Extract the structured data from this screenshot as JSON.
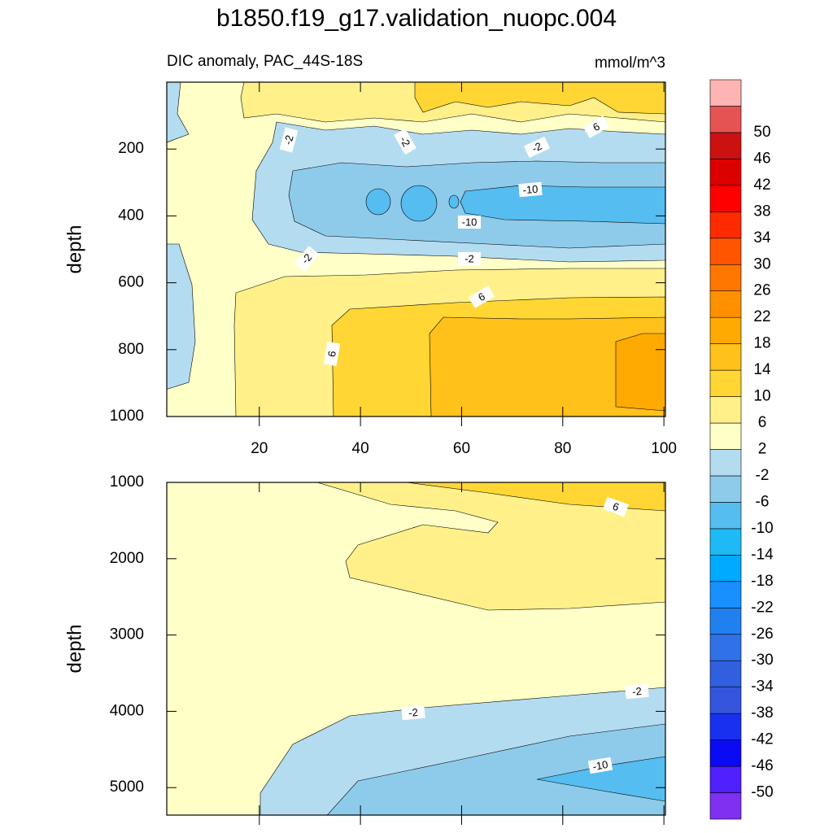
{
  "chart_data": {
    "type": "contour",
    "title": "b1850.f19_g17.validation_nuopc.004",
    "left_string": "DIC anomaly, PAC_44S-18S",
    "right_string": "mmol/m^3",
    "panels": [
      {
        "ylabel": "depth",
        "ylim": [
          0,
          1000
        ],
        "yticks": [
          200,
          400,
          600,
          800,
          1000
        ],
        "xlim": [
          1.7,
          100.3
        ],
        "xticks": [
          20,
          40,
          60,
          80,
          100
        ],
        "reverse_y": true,
        "contour_labels": [
          -2,
          -2,
          6,
          -2,
          -10,
          -10,
          -2,
          -2,
          6,
          6
        ]
      },
      {
        "ylabel": "depth",
        "ylim": [
          1000,
          5360
        ],
        "yticks": [
          1000,
          2000,
          3000,
          4000,
          5000
        ],
        "xlim": [
          1.7,
          100.3
        ],
        "reverse_y": true,
        "contour_labels": [
          6,
          -2,
          -2,
          -10
        ]
      }
    ],
    "colorbar": {
      "levels": [
        -50,
        -46,
        -42,
        -38,
        -34,
        -30,
        -26,
        -22,
        -18,
        -14,
        -10,
        -6,
        -2,
        2,
        6,
        10,
        14,
        18,
        22,
        26,
        30,
        34,
        38,
        42,
        46,
        50
      ],
      "colors": [
        "#8030f0",
        "#5020ff",
        "#0a0af5",
        "#1a30f0",
        "#3555dd",
        "#3060e0",
        "#3070e8",
        "#2080f0",
        "#1890ff",
        "#00aaff",
        "#1ebaf5",
        "#55bdf0",
        "#8ecbeb",
        "#b4dcf0",
        "#ffffc8",
        "#fff08a",
        "#ffd633",
        "#ffc11a",
        "#ffaa00",
        "#ff9100",
        "#ff7700",
        "#ff5500",
        "#ff2a00",
        "#ff0000",
        "#dd0000",
        "#cc1111",
        "#e55353",
        "#ffb4b4"
      ]
    }
  }
}
